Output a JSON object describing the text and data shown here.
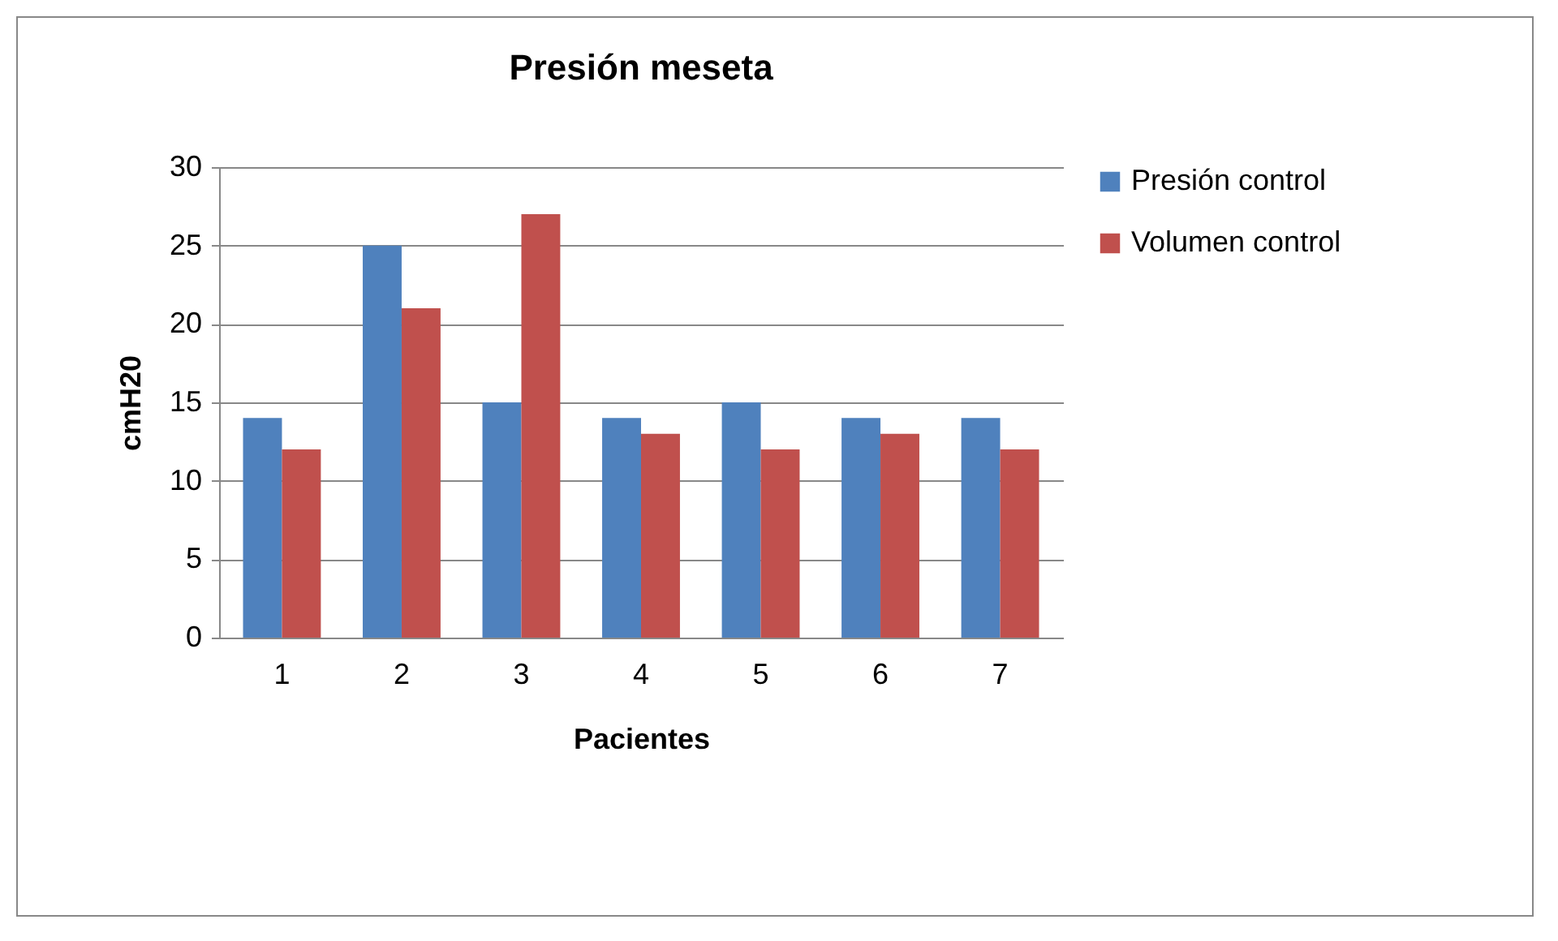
{
  "chart_data": {
    "type": "bar",
    "title": "Presión meseta",
    "xlabel": "Pacientes",
    "ylabel": "cmH20",
    "categories": [
      "1",
      "2",
      "3",
      "4",
      "5",
      "6",
      "7"
    ],
    "series": [
      {
        "name": "Presión control",
        "color": "#4f81bd",
        "values": [
          14,
          25,
          15,
          14,
          15,
          14,
          14
        ]
      },
      {
        "name": "Volumen control",
        "color": "#c0504d",
        "values": [
          12,
          21,
          27,
          13,
          12,
          13,
          12
        ]
      }
    ],
    "ylim": [
      0,
      30
    ],
    "yticks": [
      0,
      5,
      10,
      15,
      20,
      25,
      30
    ],
    "grid": "y",
    "legend": "right"
  }
}
